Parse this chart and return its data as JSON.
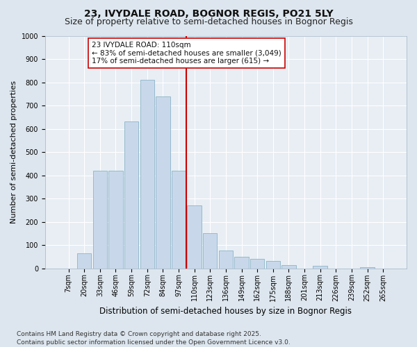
{
  "title1": "23, IVYDALE ROAD, BOGNOR REGIS, PO21 5LY",
  "title2": "Size of property relative to semi-detached houses in Bognor Regis",
  "xlabel": "Distribution of semi-detached houses by size in Bognor Regis",
  "ylabel": "Number of semi-detached properties",
  "categories": [
    "7sqm",
    "20sqm",
    "33sqm",
    "46sqm",
    "59sqm",
    "72sqm",
    "84sqm",
    "97sqm",
    "110sqm",
    "123sqm",
    "136sqm",
    "149sqm",
    "162sqm",
    "175sqm",
    "188sqm",
    "201sqm",
    "213sqm",
    "226sqm",
    "239sqm",
    "252sqm",
    "265sqm"
  ],
  "values": [
    0,
    65,
    420,
    420,
    630,
    810,
    740,
    420,
    270,
    150,
    75,
    50,
    40,
    30,
    15,
    0,
    10,
    0,
    0,
    5,
    0
  ],
  "bar_color": "#c8d8ea",
  "bar_edge_color": "#7aaabf",
  "vline_color": "#cc0000",
  "annotation_text": "23 IVYDALE ROAD: 110sqm\n← 83% of semi-detached houses are smaller (3,049)\n17% of semi-detached houses are larger (615) →",
  "annotation_box_facecolor": "#ffffff",
  "annotation_box_edgecolor": "#cc0000",
  "ylim": [
    0,
    1000
  ],
  "yticks": [
    0,
    100,
    200,
    300,
    400,
    500,
    600,
    700,
    800,
    900,
    1000
  ],
  "footer": "Contains HM Land Registry data © Crown copyright and database right 2025.\nContains public sector information licensed under the Open Government Licence v3.0.",
  "bg_color": "#dde6ee",
  "plot_bg_color": "#e8eef4",
  "grid_color": "#ffffff",
  "title_fontsize": 10,
  "subtitle_fontsize": 9,
  "tick_fontsize": 7,
  "ylabel_fontsize": 8,
  "xlabel_fontsize": 8.5,
  "footer_fontsize": 6.5,
  "annot_fontsize": 7.5
}
